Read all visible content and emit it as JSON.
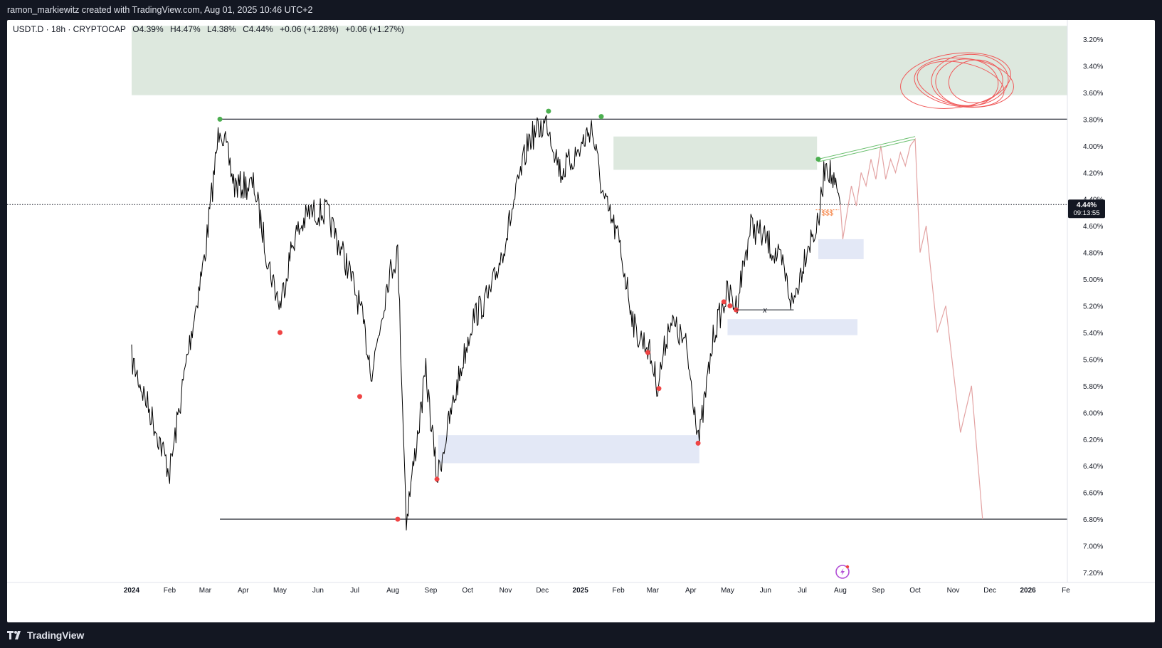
{
  "header": {
    "credit": "ramon_markiewitz created with TradingView.com, Aug 01, 2025 10:46 UTC+2"
  },
  "legend": {
    "symbol": "USDT.D · 18h · CRYPTOCAP",
    "open": "O4.39%",
    "high": "H4.47%",
    "low": "L4.38%",
    "close": "C4.44%",
    "change": "+0.06 (+1.28%)",
    "change2": "+0.06 (+1.27%)"
  },
  "price_label": {
    "value": "4.44%",
    "timer": "09:13:55"
  },
  "annotations": {
    "dollar": "$$$",
    "x_mark": "x"
  },
  "footer": {
    "brand": "TradingView"
  },
  "colors": {
    "green_zone": "#dde8de",
    "blue_zone": "#e3e8f6",
    "red_dot": "#ef4444",
    "green_dot": "#4caf50",
    "projection": "#e3a3a3",
    "circles": "#f05a5a",
    "background": "#131722"
  },
  "chart_data": {
    "type": "line",
    "title": "",
    "y_axis": {
      "scale": "inverted",
      "range": [
        3.1,
        7.3
      ],
      "ticks": [
        "3.20%",
        "3.40%",
        "3.60%",
        "3.80%",
        "4.00%",
        "4.20%",
        "4.40%",
        "4.60%",
        "4.80%",
        "5.00%",
        "5.20%",
        "5.40%",
        "5.60%",
        "5.80%",
        "6.00%",
        "6.20%",
        "6.40%",
        "6.60%",
        "6.80%",
        "7.00%",
        "7.20%"
      ],
      "tick_values": [
        3.2,
        3.4,
        3.6,
        3.8,
        4.0,
        4.2,
        4.4,
        4.6,
        4.8,
        5.0,
        5.2,
        5.4,
        5.6,
        5.8,
        6.0,
        6.2,
        6.4,
        6.6,
        6.8,
        7.0,
        7.2
      ]
    },
    "x_axis": {
      "labels": [
        "2024",
        "Feb",
        "Mar",
        "Apr",
        "May",
        "Jun",
        "Jul",
        "Aug",
        "Sep",
        "Oct",
        "Nov",
        "Dec",
        "2025",
        "Feb",
        "Mar",
        "Apr",
        "May",
        "Jun",
        "Jul",
        "Aug",
        "Sep",
        "Oct",
        "Nov",
        "Dec",
        "2026",
        "Fe"
      ],
      "bold": [
        "2024",
        "2025",
        "2026"
      ]
    },
    "series": [
      {
        "values_note": "approximate USDT dominance path (percent)",
        "x": [
          "2024-01-01",
          "2024-01-20",
          "2024-02-01",
          "2024-02-15",
          "2024-03-01",
          "2024-03-13",
          "2024-03-25",
          "2024-04-10",
          "2024-04-22",
          "2024-05-01",
          "2024-05-12",
          "2024-05-25",
          "2024-06-08",
          "2024-06-25",
          "2024-07-05",
          "2024-07-15",
          "2024-07-28",
          "2024-08-05",
          "2024-08-12",
          "2024-08-28",
          "2024-09-06",
          "2024-09-20",
          "2024-10-05",
          "2024-10-20",
          "2024-11-01",
          "2024-11-20",
          "2024-12-05",
          "2024-12-16",
          "2024-12-30",
          "2025-01-10",
          "2025-01-20",
          "2025-02-01",
          "2025-02-15",
          "2025-02-25",
          "2025-03-05",
          "2025-03-15",
          "2025-03-28",
          "2025-04-08",
          "2025-04-20",
          "2025-05-01",
          "2025-05-08",
          "2025-05-20",
          "2025-06-01",
          "2025-06-15",
          "2025-06-23",
          "2025-07-05",
          "2025-07-14",
          "2025-07-20",
          "2025-08-01"
        ],
        "y": [
          5.6,
          6.1,
          6.45,
          5.6,
          4.8,
          3.82,
          4.3,
          4.3,
          4.9,
          5.2,
          4.7,
          4.5,
          4.5,
          4.9,
          5.2,
          5.7,
          5.0,
          4.8,
          6.8,
          5.7,
          6.5,
          5.9,
          5.3,
          5.1,
          4.7,
          3.95,
          3.82,
          4.2,
          4.05,
          3.85,
          4.4,
          4.7,
          5.4,
          5.5,
          5.8,
          5.3,
          5.5,
          6.2,
          5.4,
          5.1,
          5.2,
          4.6,
          4.7,
          4.9,
          5.2,
          4.75,
          4.6,
          4.1,
          4.44
        ]
      },
      {
        "name": "projection",
        "x": [
          "2025-08-01",
          "2025-08-03",
          "2025-08-10",
          "2025-08-14",
          "2025-08-18",
          "2025-08-22",
          "2025-08-26",
          "2025-08-30",
          "2025-09-03",
          "2025-09-07",
          "2025-09-11",
          "2025-09-15",
          "2025-09-19",
          "2025-09-23",
          "2025-09-27",
          "2025-10-01",
          "2025-10-05",
          "2025-10-10",
          "2025-10-19",
          "2025-10-26",
          "2025-11-07",
          "2025-11-16",
          "2025-11-25"
        ],
        "y": [
          4.44,
          4.7,
          4.3,
          4.45,
          4.2,
          4.3,
          4.1,
          4.25,
          4.0,
          4.25,
          4.1,
          4.2,
          4.05,
          4.15,
          4.0,
          3.95,
          4.8,
          4.6,
          5.4,
          5.2,
          6.15,
          5.8,
          6.8
        ]
      }
    ],
    "levels": [
      {
        "value": 3.8,
        "from": "2024-03-13",
        "to": "2025-12-31"
      },
      {
        "value": 6.8,
        "from": "2024-03-13",
        "to": "2025-12-31"
      },
      {
        "value": 4.44,
        "style": "dotted",
        "role": "current price"
      }
    ],
    "zones": [
      {
        "kind": "supply",
        "y": [
          3.1,
          3.62
        ],
        "x": [
          "2024-01-01",
          "2026-02-10"
        ]
      },
      {
        "kind": "supply",
        "y": [
          3.93,
          4.18
        ],
        "x": [
          "2025-01-28",
          "2025-07-13"
        ]
      },
      {
        "kind": "demand",
        "y": [
          4.7,
          4.85
        ],
        "x": [
          "2025-07-14",
          "2025-08-20"
        ]
      },
      {
        "kind": "demand",
        "y": [
          5.3,
          5.42
        ],
        "x": [
          "2025-05-01",
          "2025-08-15"
        ]
      },
      {
        "kind": "demand",
        "y": [
          6.17,
          6.38
        ],
        "x": [
          "2024-09-07",
          "2025-04-08"
        ]
      }
    ],
    "swing_highs": [
      {
        "x": "2024-03-13",
        "y": 3.8
      },
      {
        "x": "2024-12-06",
        "y": 3.74
      },
      {
        "x": "2025-01-18",
        "y": 3.78
      },
      {
        "x": "2025-07-14",
        "y": 4.1
      }
    ],
    "swing_lows": [
      {
        "x": "2024-05-01",
        "y": 5.4
      },
      {
        "x": "2024-07-05",
        "y": 5.88
      },
      {
        "x": "2024-08-05",
        "y": 6.8
      },
      {
        "x": "2024-09-06",
        "y": 6.5
      },
      {
        "x": "2025-02-25",
        "y": 5.55
      },
      {
        "x": "2025-03-06",
        "y": 5.82
      },
      {
        "x": "2025-04-07",
        "y": 6.23
      },
      {
        "x": "2025-04-28",
        "y": 5.17
      },
      {
        "x": "2025-05-03",
        "y": 5.2
      },
      {
        "x": "2025-05-08",
        "y": 5.23
      }
    ],
    "grid": false,
    "legend": "top-left"
  }
}
